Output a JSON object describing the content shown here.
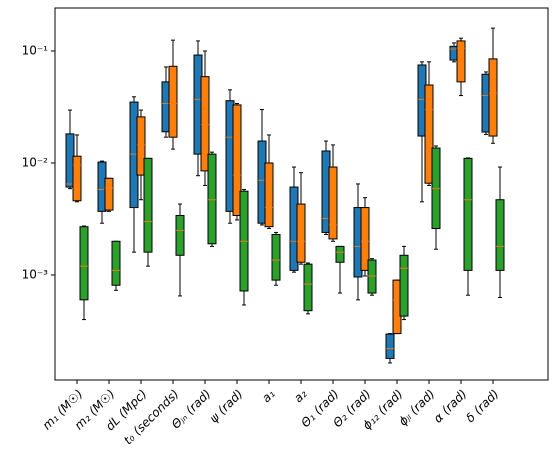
{
  "chart_data": {
    "type": "boxplot",
    "categories": [
      "m₁ (M☉)",
      "m₂ (M☉)",
      "dL (Mpc)",
      "t₀ (seconds)",
      "Θⱼₙ (rad)",
      "ψ (rad)",
      "a₁",
      "a₂",
      "Θ₁ (rad)",
      "Θ₂ (rad)",
      "ϕ₁₂ (rad)",
      "ϕⱼₗ (rad)",
      "α (rad)",
      "δ (rad)"
    ],
    "log_y": true,
    "median_color": "#ff7f0e",
    "ylim": [
      0.0001155,
      0.242
    ],
    "yticks": [
      {
        "value": 0.001,
        "label": "10⁻³"
      },
      {
        "value": 0.01,
        "label": "10⁻²"
      },
      {
        "value": 0.1,
        "label": "10⁻¹"
      }
    ],
    "series": [
      {
        "color": "#1f77b4",
        "whislo": [
          0.0059,
          0.0029,
          0.0016,
          0.017,
          0.0077,
          0.0029,
          0.0028,
          0.00106,
          0.0023,
          0.0006,
          0.000164,
          0.0045,
          0.08,
          0.018
        ],
        "q1": [
          0.0061,
          0.0037,
          0.004,
          0.019,
          0.012,
          0.0037,
          0.0029,
          0.0011,
          0.0024,
          0.00096,
          0.00018,
          0.0174,
          0.083,
          0.0189
        ],
        "med": [
          0.0065,
          0.0058,
          0.012,
          0.034,
          0.037,
          0.017,
          0.007,
          0.002,
          0.0032,
          0.0018,
          0.00022,
          0.037,
          0.104,
          0.04
        ],
        "q3": [
          0.0182,
          0.0102,
          0.035,
          0.053,
          0.092,
          0.036,
          0.0157,
          0.0061,
          0.0128,
          0.004,
          0.000297,
          0.075,
          0.11,
          0.062
        ],
        "whishi": [
          0.0297,
          0.0104,
          0.039,
          0.072,
          0.123,
          0.045,
          0.03,
          0.0092,
          0.0157,
          0.0065,
          0.0003,
          0.08,
          0.118,
          0.065
        ]
      },
      {
        "color": "#ff7f0e",
        "whislo": [
          0.0045,
          0.0037,
          0.0047,
          0.0133,
          0.0063,
          0.0031,
          0.0026,
          0.00125,
          0.002,
          0.00098,
          0.0003,
          0.0063,
          0.04,
          0.015
        ],
        "q1": [
          0.0046,
          0.0038,
          0.0078,
          0.017,
          0.0085,
          0.0034,
          0.0027,
          0.0013,
          0.0021,
          0.0011,
          0.0003,
          0.0066,
          0.053,
          0.0174
        ],
        "med": [
          0.0096,
          0.006,
          0.0145,
          0.034,
          0.022,
          0.0078,
          0.004,
          0.002,
          0.0028,
          0.002,
          0.0006,
          0.03,
          0.106,
          0.042
        ],
        "q3": [
          0.0115,
          0.0073,
          0.0258,
          0.073,
          0.059,
          0.033,
          0.01,
          0.0043,
          0.0092,
          0.004,
          0.0009,
          0.0497,
          0.123,
          0.085
        ],
        "whishi": [
          0.0178,
          0.0073,
          0.0297,
          0.125,
          0.1,
          0.034,
          0.0178,
          0.0082,
          0.0145,
          0.0049,
          0.0009,
          0.08,
          0.13,
          0.16
        ]
      },
      {
        "color": "#2ca02c",
        "whislo": [
          0.0004,
          0.00073,
          0.0012,
          0.00065,
          0.0018,
          0.00054,
          0.00081,
          0.00045,
          0.00069,
          0.00066,
          0.0004,
          0.0017,
          0.00066,
          0.00063
        ],
        "q1": [
          0.0006,
          0.00081,
          0.0016,
          0.0015,
          0.0019,
          0.00072,
          0.0009,
          0.00048,
          0.0013,
          0.00069,
          0.00043,
          0.0026,
          0.0011,
          0.0011
        ],
        "med": [
          0.0012,
          0.0011,
          0.003,
          0.0025,
          0.0047,
          0.002,
          0.00136,
          0.00083,
          0.0016,
          0.00098,
          0.00115,
          0.0059,
          0.0047,
          0.0018
        ],
        "q3": [
          0.0027,
          0.002,
          0.011,
          0.0034,
          0.012,
          0.0056,
          0.0023,
          0.00125,
          0.0018,
          0.00136,
          0.0015,
          0.0136,
          0.011,
          0.0047
        ],
        "whishi": [
          0.00274,
          0.002,
          0.011,
          0.0043,
          0.0125,
          0.0058,
          0.0024,
          0.00128,
          0.0018,
          0.0014,
          0.0018,
          0.0142,
          0.0111,
          0.0092
        ]
      }
    ]
  }
}
